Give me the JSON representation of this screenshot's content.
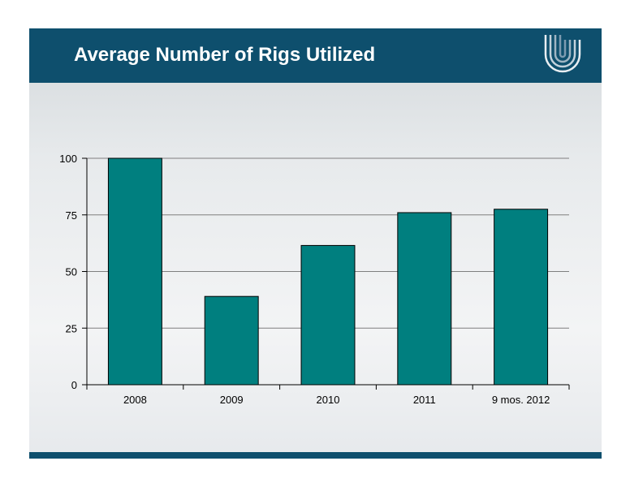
{
  "slide": {
    "title": "Average Number of Rigs Utilized",
    "logo_icon": "company-logo-u-icon",
    "colors": {
      "header": "#0e4f6d",
      "bar": "#007f7f"
    }
  },
  "chart_data": {
    "type": "bar",
    "title": "Average Number of Rigs Utilized",
    "categories": [
      "2008",
      "2009",
      "2010",
      "2011",
      "9 mos. 2012"
    ],
    "values": [
      100,
      39,
      61.5,
      76,
      77.5
    ],
    "xlabel": "",
    "ylabel": "",
    "ylim": [
      0,
      100
    ],
    "yticks": [
      0,
      25,
      50,
      75,
      100
    ],
    "ytick_labels": [
      "0",
      "25",
      "50",
      "75",
      "100"
    ],
    "grid": true,
    "legend": "none",
    "bar_color": "#007f7f"
  }
}
